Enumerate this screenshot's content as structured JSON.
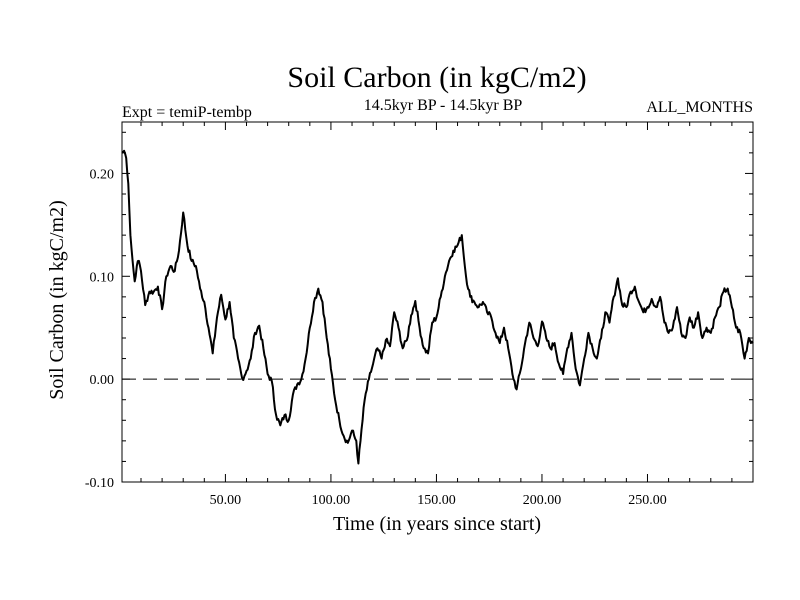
{
  "chart_data": {
    "type": "line",
    "title": "Soil Carbon (in kgC/m2)",
    "subtitle_left": "Expt = temiP-tembp",
    "subtitle_center": "14.5kyr BP - 14.5kyr BP",
    "subtitle_right": "ALL_MONTHS",
    "xlabel": "Time (in years since start)",
    "ylabel": "Soil Carbon (in kgC/m2)",
    "xlim": [
      1,
      300
    ],
    "ylim": [
      -0.1,
      0.25
    ],
    "xticks": [
      50,
      100,
      150,
      200,
      250
    ],
    "xtick_labels": [
      "50.00",
      "100.00",
      "150.00",
      "200.00",
      "250.00"
    ],
    "yticks": [
      -0.1,
      0.0,
      0.1,
      0.2
    ],
    "ytick_labels": [
      "-0.10",
      "0.00",
      "0.10",
      "0.20"
    ],
    "reference_line": {
      "y": 0.0,
      "style": "dashed"
    },
    "grid": false,
    "line_color": "#000000",
    "series": [
      {
        "x": [
          1,
          2,
          3,
          4,
          5,
          6,
          7,
          8,
          9,
          10,
          12,
          14,
          16,
          18,
          20,
          22,
          24,
          26,
          28,
          30,
          32,
          34,
          36,
          38,
          40,
          42,
          44,
          46,
          48,
          50,
          52,
          54,
          56,
          58,
          60,
          62,
          64,
          66,
          68,
          70,
          72,
          74,
          76,
          78,
          80,
          82,
          84,
          86,
          88,
          90,
          92,
          94,
          96,
          98,
          100,
          102,
          104,
          106,
          108,
          110,
          112,
          113,
          114,
          116,
          118,
          120,
          122,
          124,
          126,
          128,
          130,
          132,
          134,
          136,
          138,
          140,
          142,
          144,
          146,
          148,
          150,
          152,
          154,
          156,
          158,
          160,
          162,
          164,
          166,
          168,
          170,
          172,
          174,
          176,
          178,
          180,
          182,
          184,
          186,
          188,
          190,
          192,
          194,
          196,
          198,
          200,
          202,
          204,
          206,
          208,
          210,
          212,
          214,
          216,
          218,
          220,
          222,
          224,
          226,
          228,
          230,
          232,
          234,
          236,
          238,
          240,
          242,
          244,
          246,
          248,
          250,
          252,
          254,
          256,
          258,
          260,
          262,
          264,
          266,
          268,
          270,
          272,
          274,
          276,
          278,
          280,
          282,
          284,
          286,
          288,
          290,
          292,
          294,
          296,
          298,
          300
        ],
        "y": [
          0.22,
          0.222,
          0.215,
          0.19,
          0.14,
          0.115,
          0.095,
          0.11,
          0.115,
          0.105,
          0.072,
          0.085,
          0.085,
          0.09,
          0.068,
          0.1,
          0.11,
          0.105,
          0.125,
          0.162,
          0.13,
          0.115,
          0.11,
          0.088,
          0.075,
          0.05,
          0.025,
          0.06,
          0.082,
          0.058,
          0.075,
          0.04,
          0.02,
          0.0,
          0.008,
          0.02,
          0.045,
          0.052,
          0.03,
          0.005,
          -0.002,
          -0.035,
          -0.045,
          -0.035,
          -0.04,
          -0.015,
          -0.005,
          0.0,
          0.02,
          0.05,
          0.075,
          0.088,
          0.075,
          0.04,
          0.01,
          -0.02,
          -0.04,
          -0.055,
          -0.062,
          -0.05,
          -0.06,
          -0.082,
          -0.06,
          -0.02,
          0.0,
          0.015,
          0.03,
          0.02,
          0.038,
          0.032,
          0.065,
          0.05,
          0.03,
          0.038,
          0.062,
          0.076,
          0.05,
          0.03,
          0.025,
          0.055,
          0.06,
          0.08,
          0.1,
          0.115,
          0.125,
          0.13,
          0.14,
          0.1,
          0.08,
          0.075,
          0.07,
          0.075,
          0.065,
          0.06,
          0.045,
          0.035,
          0.05,
          0.03,
          0.005,
          -0.01,
          0.01,
          0.035,
          0.055,
          0.04,
          0.032,
          0.056,
          0.04,
          0.03,
          0.035,
          0.015,
          0.005,
          0.03,
          0.045,
          0.01,
          -0.006,
          0.02,
          0.045,
          0.03,
          0.02,
          0.04,
          0.065,
          0.055,
          0.08,
          0.098,
          0.072,
          0.07,
          0.085,
          0.09,
          0.075,
          0.065,
          0.07,
          0.078,
          0.07,
          0.08,
          0.055,
          0.045,
          0.05,
          0.07,
          0.045,
          0.04,
          0.06,
          0.05,
          0.065,
          0.04,
          0.05,
          0.045,
          0.06,
          0.07,
          0.085,
          0.088,
          0.07,
          0.05,
          0.045,
          0.02,
          0.04,
          0.035
        ]
      }
    ]
  }
}
